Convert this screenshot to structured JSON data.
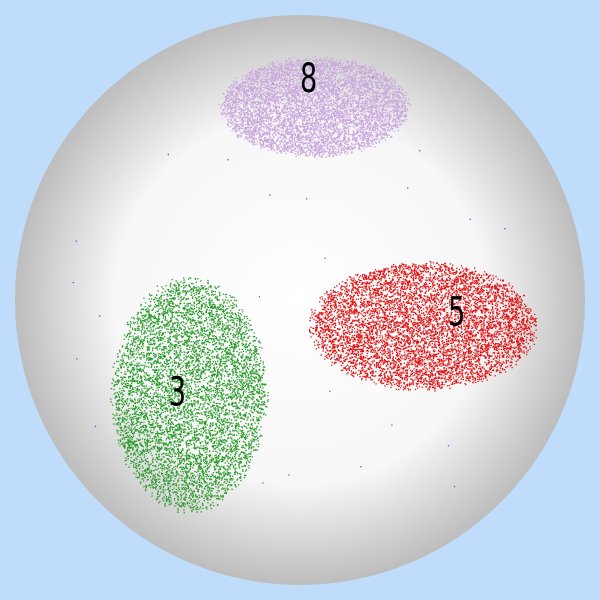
{
  "chart_data": {
    "type": "scatter",
    "projection": "disk",
    "background_color": "#bfdcfb",
    "disk": {
      "fill_center": "#ffffff",
      "fill_edge": "#bdbdbd"
    },
    "clusters": [
      {
        "label": "8",
        "color": "#c9a8dd",
        "point_count": 6500,
        "center_xy": [
          0.05,
          0.68
        ],
        "spread_xy": [
          0.34,
          0.18
        ],
        "label_xy": [
          0.03,
          0.77
        ]
      },
      {
        "label": "5",
        "color": "#e01414",
        "point_count": 7000,
        "center_xy": [
          0.43,
          -0.09
        ],
        "spread_xy": [
          0.41,
          0.23
        ],
        "label_xy": [
          0.55,
          -0.05
        ]
      },
      {
        "label": "3",
        "color": "#2c9a2c",
        "point_count": 7000,
        "center_xy": [
          -0.39,
          -0.33
        ],
        "spread_xy": [
          0.28,
          0.42
        ],
        "label_xy": [
          -0.43,
          -0.33
        ]
      }
    ],
    "noise": {
      "color": "#6a4bd1",
      "point_count": 40
    },
    "xlim": [
      -1,
      1
    ],
    "ylim": [
      -1,
      1
    ],
    "grid": false,
    "legend": "none"
  }
}
